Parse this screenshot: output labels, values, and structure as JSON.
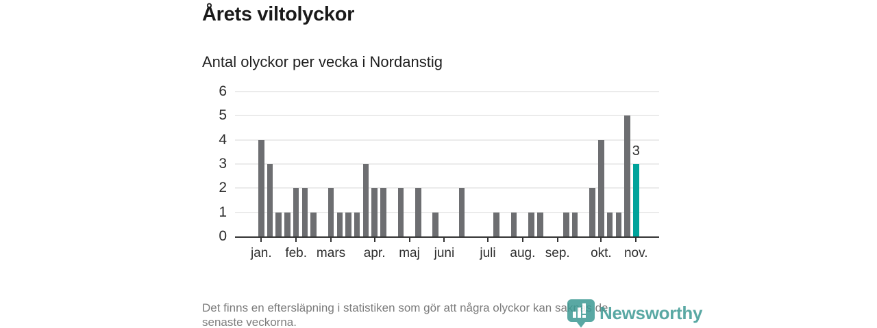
{
  "header": {
    "title": "Årets viltolyckor",
    "subtitle": "Antal olyckor per vecka i Nordanstig"
  },
  "footnote": {
    "line1": "Det finns en eftersläpning i statistiken som gör att några olyckor kan saknas de",
    "line2": "senaste veckorna."
  },
  "logo": {
    "name": "Newsworthy",
    "icon": "newsworthy-pin-chart-icon"
  },
  "colors": {
    "bar": "#6d6e71",
    "accent": "#00a39b",
    "grid": "#ebebeb",
    "axis": "#333333",
    "text": "#2d2d2d",
    "muted": "#7c7c7c",
    "logo_teal": "#3d9a94"
  },
  "chart_data": {
    "type": "bar",
    "title": "Årets viltolyckor",
    "subtitle": "Antal olyckor per vecka i Nordanstig",
    "x_unit": "vecka (week of year)",
    "categories": [
      1,
      2,
      3,
      4,
      5,
      6,
      7,
      8,
      9,
      10,
      11,
      12,
      13,
      14,
      15,
      16,
      17,
      18,
      19,
      20,
      21,
      22,
      23,
      24,
      25,
      26,
      27,
      28,
      29,
      30,
      31,
      32,
      33,
      34,
      35,
      36,
      37,
      38,
      39,
      40,
      41,
      42,
      43,
      44
    ],
    "values": [
      4,
      3,
      1,
      1,
      2,
      2,
      1,
      0,
      2,
      1,
      1,
      1,
      3,
      2,
      2,
      0,
      2,
      0,
      2,
      0,
      1,
      0,
      0,
      2,
      0,
      0,
      0,
      1,
      0,
      1,
      0,
      1,
      1,
      0,
      0,
      1,
      1,
      0,
      2,
      4,
      1,
      1,
      5,
      3
    ],
    "highlight_last_bar": true,
    "last_value_label": "3",
    "yticks": [
      0,
      1,
      2,
      3,
      4,
      5,
      6
    ],
    "ylim": [
      0,
      6
    ],
    "grid": "horizontal",
    "legend": "none",
    "month_ticks": [
      {
        "label": "jan.",
        "week": 1
      },
      {
        "label": "feb.",
        "week": 5
      },
      {
        "label": "mars",
        "week": 9
      },
      {
        "label": "apr.",
        "week": 14
      },
      {
        "label": "maj",
        "week": 18
      },
      {
        "label": "juni",
        "week": 22
      },
      {
        "label": "juli",
        "week": 27
      },
      {
        "label": "aug.",
        "week": 31
      },
      {
        "label": "sep.",
        "week": 35
      },
      {
        "label": "okt.",
        "week": 40
      },
      {
        "label": "nov.",
        "week": 44
      }
    ]
  }
}
